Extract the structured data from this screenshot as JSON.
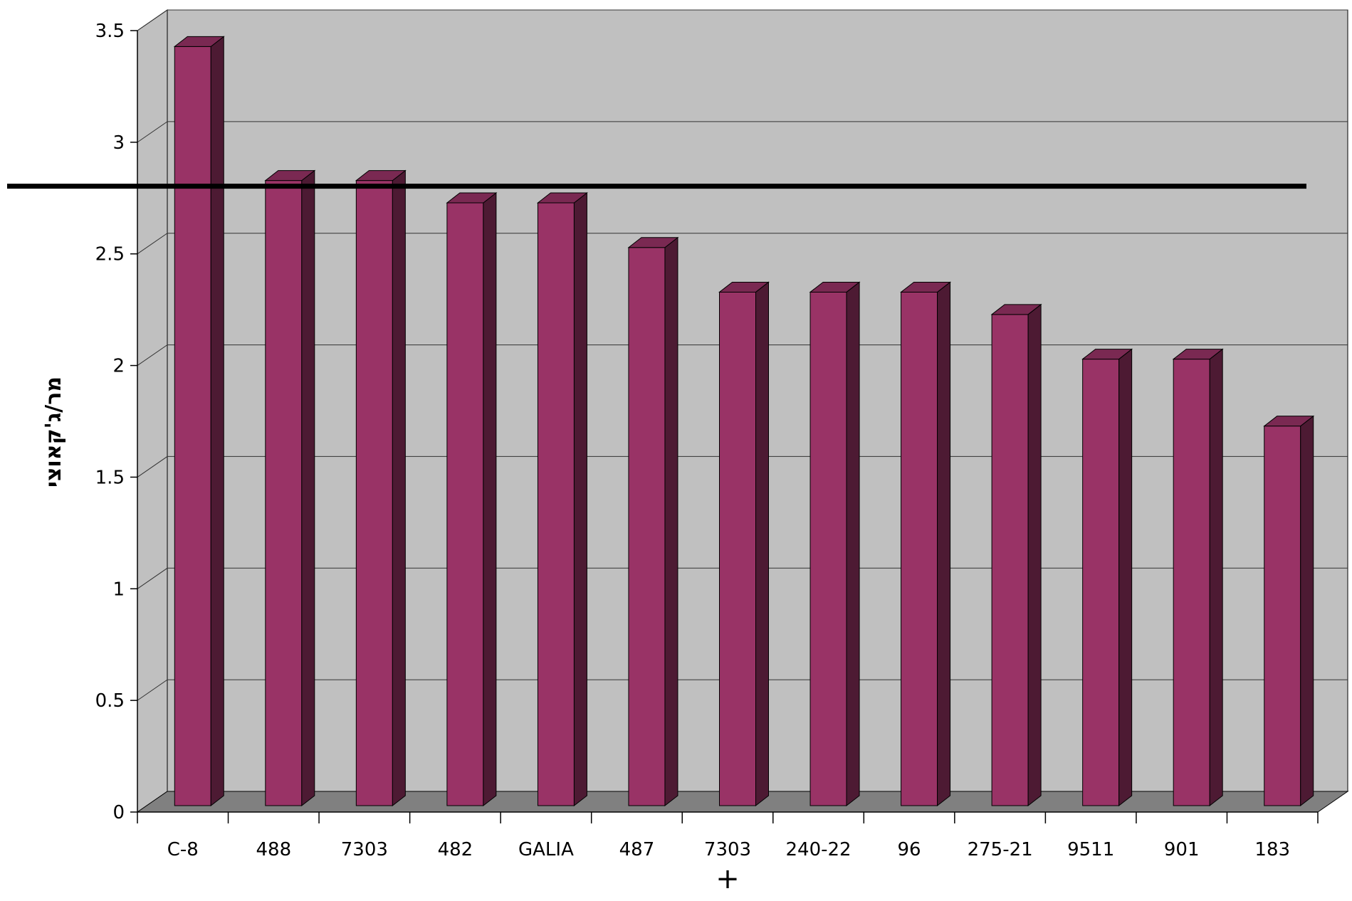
{
  "chart_data": {
    "type": "bar",
    "style": "3d-column",
    "categories": [
      "C-8",
      "488",
      "7303",
      "482",
      "GALIA",
      "487",
      "7303\n+",
      "240-22",
      "96",
      "275-21",
      "9511",
      "901",
      "183"
    ],
    "values": [
      3.4,
      2.8,
      2.8,
      2.7,
      2.7,
      2.5,
      2.3,
      2.3,
      2.3,
      2.2,
      2.0,
      2.0,
      1.7
    ],
    "title": "",
    "xlabel": "",
    "ylabel": "מר/ג'קאוצי",
    "ylim": [
      0,
      3.5
    ],
    "yticks": [
      0,
      0.5,
      1,
      1.5,
      2,
      2.5,
      3,
      3.5
    ],
    "ytick_labels": [
      "0",
      "0.5",
      "1",
      "1.5",
      "2",
      "2.5",
      "3",
      "3.5"
    ],
    "reference_line": 2.8,
    "grid": true,
    "legend": "none",
    "colors": {
      "bar_front": "#993366",
      "bar_side": "#4d1a33",
      "bar_top": "#7a2952",
      "wall": "#c0c0c0",
      "floor": "#808080",
      "reference_line": "#000000"
    }
  }
}
